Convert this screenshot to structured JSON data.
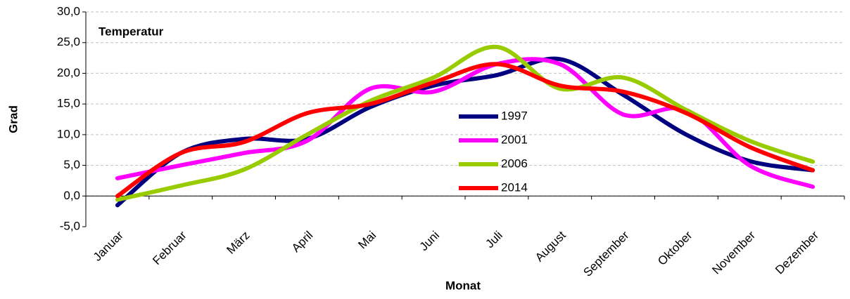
{
  "chart_data": {
    "type": "line",
    "title": "Temperatur",
    "x_label": "Monat",
    "y_label": "Grad",
    "categories": [
      "Januar",
      "Februar",
      "März",
      "April",
      "Mai",
      "Juni",
      "Juli",
      "August",
      "September",
      "Oktober",
      "November",
      "Dezember"
    ],
    "series": [
      {
        "name": "1997",
        "color": "#000080",
        "values": [
          -1.5,
          7.0,
          9.3,
          9.3,
          14.5,
          18.0,
          19.7,
          22.3,
          16.5,
          10.0,
          5.7,
          4.2
        ]
      },
      {
        "name": "2001",
        "color": "#ff00ff",
        "values": [
          2.9,
          5.0,
          7.0,
          9.0,
          17.5,
          17.0,
          21.5,
          21.5,
          13.3,
          14.0,
          5.0,
          1.5
        ]
      },
      {
        "name": "2006",
        "color": "#99cc00",
        "values": [
          -0.6,
          1.7,
          4.3,
          10.0,
          15.5,
          19.3,
          24.3,
          17.5,
          19.3,
          14.0,
          9.0,
          5.6
        ]
      },
      {
        "name": "2014",
        "color": "#ff0000",
        "values": [
          0.0,
          7.0,
          8.8,
          13.5,
          15.0,
          18.5,
          21.5,
          18.0,
          17.0,
          13.5,
          8.0,
          4.2
        ]
      }
    ],
    "ylim": [
      -5,
      30
    ],
    "yticks": [
      {
        "value": -5,
        "label": "-5,0"
      },
      {
        "value": 0,
        "label": "0,0"
      },
      {
        "value": 5,
        "label": "5,0"
      },
      {
        "value": 10,
        "label": "10,0"
      },
      {
        "value": 15,
        "label": "15,0"
      },
      {
        "value": 20,
        "label": "20,0"
      },
      {
        "value": 25,
        "label": "25,0"
      },
      {
        "value": 30,
        "label": "30,0"
      }
    ],
    "grid": true,
    "smooth": true,
    "legend": "center"
  }
}
